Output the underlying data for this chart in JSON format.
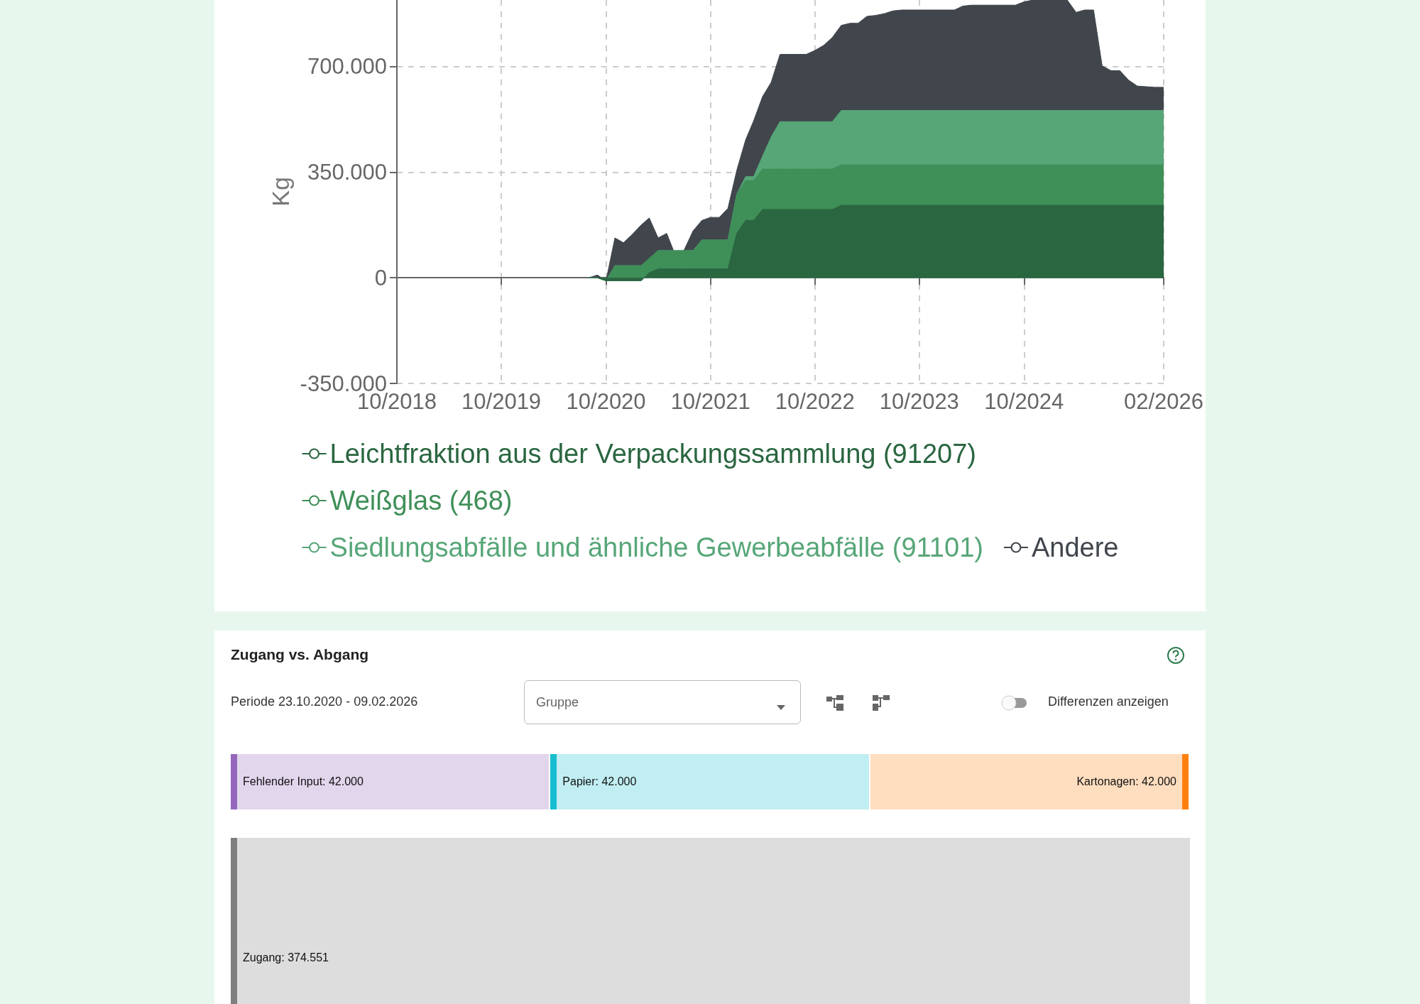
{
  "chart_data": [
    {
      "type": "area",
      "stacked": true,
      "ylabel": "Kg",
      "grid": true,
      "legend": "bottom",
      "x": [
        "2020-08",
        "2020-09",
        "2020-10",
        "2020-11",
        "2020-12",
        "2021-01",
        "2021-02",
        "2021-03",
        "2021-04",
        "2021-05",
        "2021-06",
        "2021-07",
        "2021-08",
        "2021-09",
        "2021-10",
        "2021-11",
        "2021-12",
        "2022-01",
        "2022-02",
        "2022-03",
        "2022-04",
        "2022-05",
        "2022-06",
        "2022-07",
        "2022-08",
        "2022-09",
        "2022-10",
        "2022-11",
        "2022-12",
        "2023-01",
        "2023-02",
        "2023-03",
        "2023-04",
        "2023-05",
        "2023-06",
        "2023-07",
        "2023-08",
        "2023-09",
        "2023-10",
        "2023-11",
        "2023-12",
        "2024-01",
        "2024-02",
        "2024-03",
        "2024-04",
        "2024-05",
        "2024-06",
        "2024-07",
        "2024-08",
        "2024-09",
        "2024-10",
        "2024-11",
        "2024-12",
        "2025-01",
        "2025-02",
        "2025-03",
        "2025-04",
        "2025-05",
        "2025-06",
        "2025-07",
        "2025-08",
        "2025-09",
        "2025-10",
        "2025-11",
        "2025-12",
        "2026-01",
        "2026-02"
      ],
      "xlim": [
        "2018-10",
        "2026-02"
      ],
      "xticks": [
        {
          "value": "2018-10",
          "label": "10/2018"
        },
        {
          "value": "2019-10",
          "label": "10/2019"
        },
        {
          "value": "2020-10",
          "label": "10/2020"
        },
        {
          "value": "2021-10",
          "label": "10/2021"
        },
        {
          "value": "2022-10",
          "label": "10/2022"
        },
        {
          "value": "2023-10",
          "label": "10/2023"
        },
        {
          "value": "2024-10",
          "label": "10/2024"
        },
        {
          "value": "2026-02",
          "label": "02/2026"
        }
      ],
      "ylim": [
        -350000,
        920000
      ],
      "yticks": [
        {
          "value": -350000,
          "label": "-350.000"
        },
        0,
        {
          "value": 350000,
          "label": "350.000"
        },
        {
          "value": 700000,
          "label": "700.000"
        }
      ],
      "series": [
        {
          "name": "Leichtfraktion aus der Verpackungssammlung (91207)",
          "color": "#2a6640",
          "values": [
            0,
            0,
            -10000,
            -10000,
            -10000,
            -10000,
            -10000,
            17000,
            29000,
            29000,
            29000,
            29000,
            29000,
            29000,
            29000,
            29000,
            29000,
            147000,
            190000,
            190000,
            226000,
            226000,
            226000,
            226000,
            226000,
            226000,
            226000,
            226000,
            226000,
            240000,
            240000,
            240000,
            240000,
            240000,
            240000,
            240000,
            240000,
            240000,
            240000,
            240000,
            240000,
            240000,
            240000,
            240000,
            240000,
            240000,
            240000,
            240000,
            240000,
            240000,
            240000,
            240000,
            240000,
            240000,
            240000,
            240000,
            240000,
            240000,
            240000,
            240000,
            240000,
            240000,
            240000,
            240000,
            240000,
            240000,
            240000
          ]
        },
        {
          "name": "Weißglas (468)",
          "color": "#3f8f58",
          "values": [
            0,
            0,
            0,
            50000,
            50000,
            50000,
            50000,
            47000,
            61000,
            61000,
            61000,
            61000,
            61000,
            96000,
            96000,
            96000,
            96000,
            130000,
            132000,
            132000,
            134000,
            134000,
            134000,
            134000,
            134000,
            134000,
            134000,
            134000,
            134000,
            134000,
            134000,
            134000,
            134000,
            134000,
            134000,
            134000,
            134000,
            134000,
            134000,
            134000,
            134000,
            134000,
            134000,
            134000,
            134000,
            134000,
            134000,
            134000,
            134000,
            134000,
            134000,
            134000,
            134000,
            134000,
            134000,
            134000,
            134000,
            134000,
            134000,
            134000,
            134000,
            134000,
            134000,
            134000,
            134000,
            134000,
            134000
          ]
        },
        {
          "name": "Siedlungsabfälle und ähnliche Gewerbeabfälle (91101)",
          "color": "#57a678",
          "values": [
            0,
            0,
            0,
            0,
            0,
            0,
            0,
            0,
            0,
            0,
            0,
            0,
            0,
            0,
            0,
            0,
            0,
            0,
            13000,
            13000,
            43000,
            106000,
            157000,
            157000,
            157000,
            157000,
            157000,
            157000,
            157000,
            180000,
            180000,
            180000,
            180000,
            180000,
            180000,
            180000,
            180000,
            180000,
            180000,
            180000,
            180000,
            180000,
            180000,
            180000,
            180000,
            180000,
            180000,
            180000,
            180000,
            180000,
            180000,
            180000,
            180000,
            180000,
            180000,
            180000,
            180000,
            180000,
            180000,
            180000,
            180000,
            180000,
            180000,
            180000,
            180000,
            180000,
            180000
          ]
        },
        {
          "name": "Andere",
          "color": "#41464d",
          "values": [
            0,
            9000,
            0,
            92000,
            76000,
            104000,
            135000,
            134000,
            42000,
            57000,
            -17000,
            2000,
            65000,
            65000,
            75000,
            75000,
            105000,
            79000,
            122000,
            185000,
            197000,
            181000,
            223000,
            223000,
            223000,
            223000,
            236000,
            253000,
            279000,
            282000,
            289000,
            289000,
            312000,
            315000,
            321000,
            330000,
            333000,
            333000,
            333000,
            333000,
            333000,
            333000,
            333000,
            346000,
            349000,
            349000,
            349000,
            349000,
            349000,
            349000,
            360000,
            366000,
            366000,
            366000,
            366000,
            366000,
            325000,
            333000,
            333000,
            148000,
            132000,
            132000,
            101000,
            81000,
            79000,
            77000,
            77000
          ]
        }
      ]
    },
    {
      "type": "other",
      "title": "Zugang vs. Abgang",
      "annotations": [
        "Periode 23.10.2020 - 09.02.2026",
        "Gruppe",
        "Differenzen anzeigen"
      ],
      "categories": [
        "Fehlender Input: 42.000",
        "Papier: 42.000",
        "Kartonagen: 42.000",
        "Zugang: 374.551"
      ],
      "colors": [
        "#9467bd",
        "#17becf",
        "#ff7f0e",
        "#7f7f7f"
      ]
    }
  ]
}
